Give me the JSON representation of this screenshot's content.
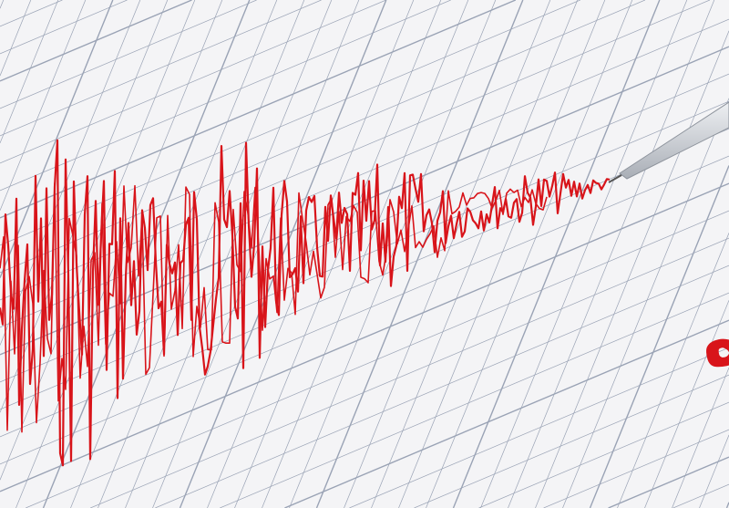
{
  "image": {
    "caption": "زمین لرزه",
    "colors": {
      "background": "#f4f4f6",
      "grid": "#9aa3b5",
      "waveform": "#d8141a",
      "caption": "#d8141a",
      "stylus": "#c9cdd3"
    },
    "icons": [
      "seismograph-stylus-icon"
    ]
  }
}
